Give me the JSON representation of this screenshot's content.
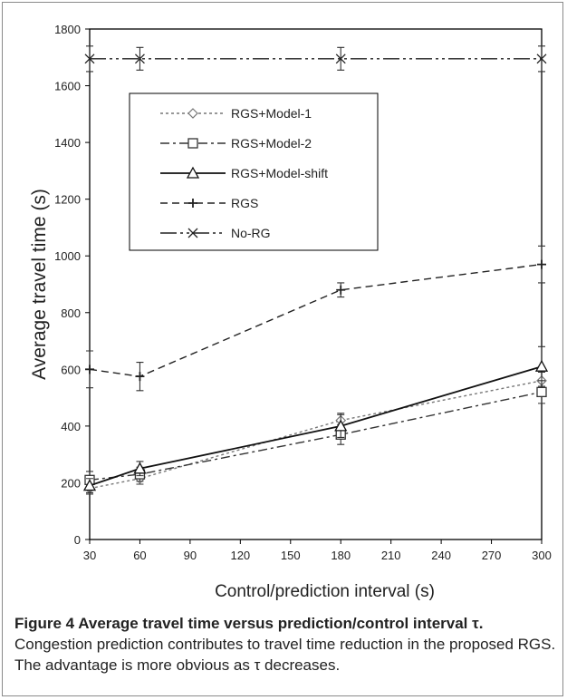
{
  "chart_data": {
    "type": "line",
    "title": "",
    "xlabel": "Control/prediction interval (s)",
    "ylabel": "Average travel time (s)",
    "xlim": [
      30,
      300
    ],
    "ylim": [
      0,
      1800
    ],
    "xticks": [
      30,
      60,
      90,
      120,
      150,
      180,
      210,
      240,
      270,
      300
    ],
    "yticks": [
      0,
      200,
      400,
      600,
      800,
      1000,
      1200,
      1400,
      1600,
      1800
    ],
    "legend_position": "upper-left",
    "grid": false,
    "series": [
      {
        "name": "RGS+Model-1",
        "marker": "diamond",
        "dash": "3,3",
        "color": "#777777",
        "x": [
          30,
          60,
          180,
          300
        ],
        "y": [
          180,
          215,
          420,
          560
        ],
        "err": [
          20,
          20,
          25,
          30
        ]
      },
      {
        "name": "RGS+Model-2",
        "marker": "square",
        "dash": "10,4,3,4",
        "color": "#333333",
        "x": [
          30,
          60,
          180,
          300
        ],
        "y": [
          210,
          230,
          370,
          520
        ],
        "err": [
          30,
          25,
          35,
          40
        ]
      },
      {
        "name": "RGS+Model-shift",
        "marker": "triangle",
        "dash": "",
        "color": "#111111",
        "x": [
          30,
          60,
          180,
          300
        ],
        "y": [
          190,
          250,
          400,
          610
        ],
        "err": [
          25,
          25,
          40,
          70
        ]
      },
      {
        "name": "RGS",
        "marker": "plus",
        "dash": "8,5",
        "color": "#222222",
        "x": [
          30,
          60,
          180,
          300
        ],
        "y": [
          600,
          575,
          880,
          970
        ],
        "err": [
          65,
          50,
          25,
          65
        ]
      },
      {
        "name": "No-RG",
        "marker": "x",
        "dash": "18,4,3,4,3,4",
        "color": "#222222",
        "x": [
          30,
          60,
          180,
          300
        ],
        "y": [
          1695,
          1695,
          1695,
          1695
        ],
        "err": [
          45,
          40,
          40,
          45
        ]
      }
    ]
  },
  "caption": {
    "title": "Figure 4 Average travel time versus prediction/control interval τ.",
    "text": " Congestion prediction contributes to travel time reduction in the proposed RGS. The advantage is more obvious as τ decreases."
  }
}
